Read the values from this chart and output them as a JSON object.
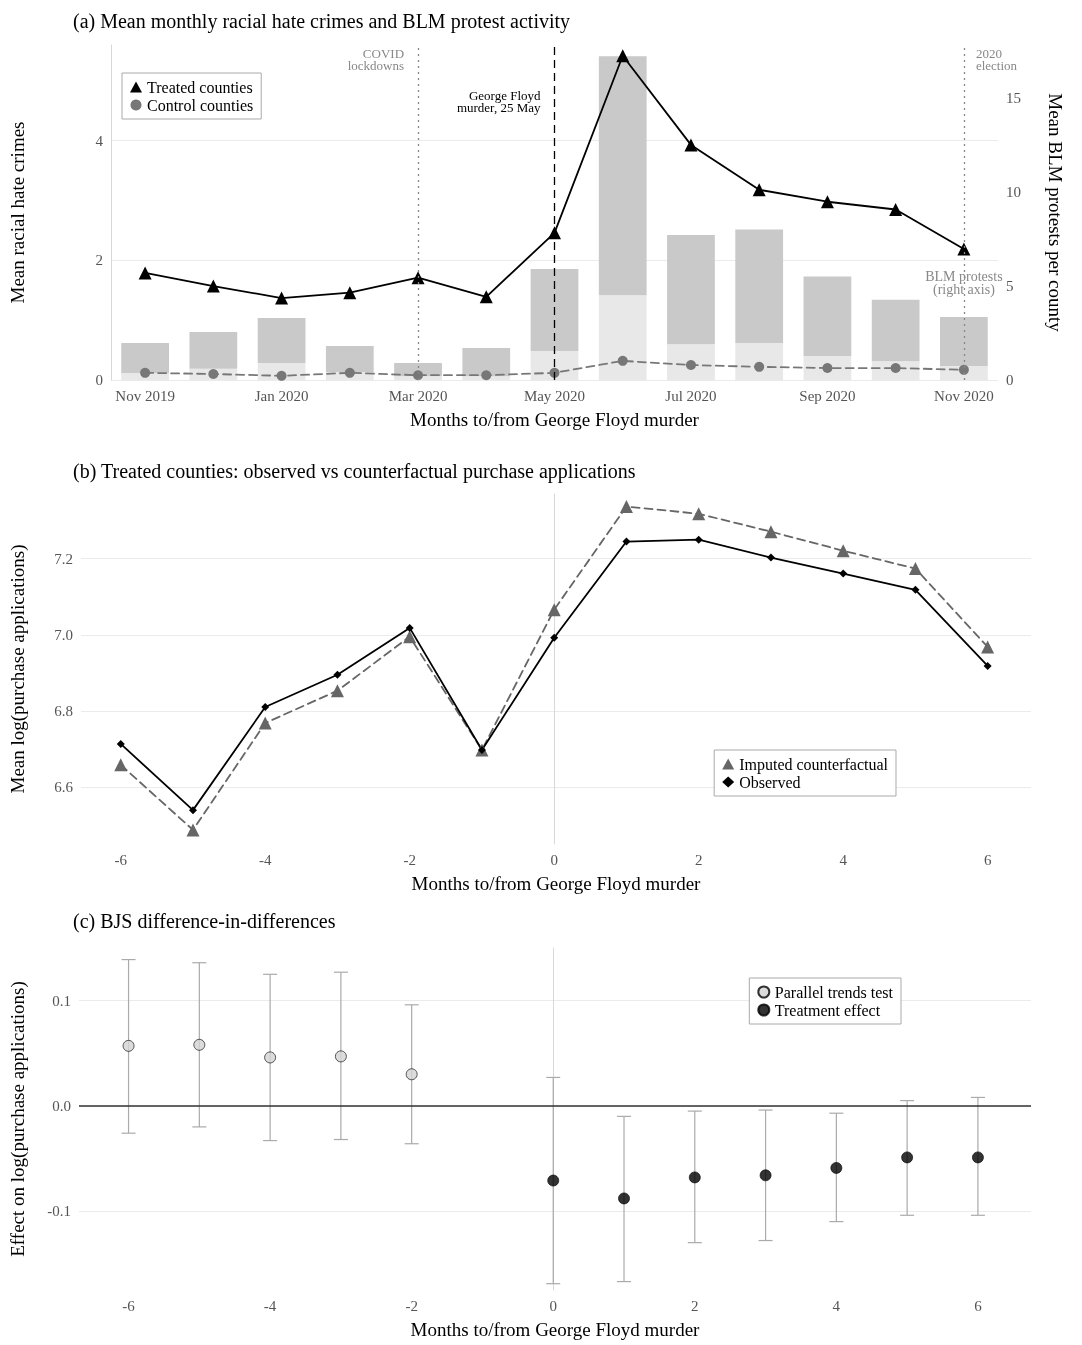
{
  "chart_data": [
    {
      "type": "bar",
      "title": "(a) Mean monthly racial hate crimes and BLM protest activity",
      "xlabel": "Months to/from George Floyd murder",
      "ylabel": "Mean racial hate crimes",
      "y2label": "Mean BLM protests per county",
      "categories": [
        "Nov 2019",
        null,
        "Jan 2020",
        null,
        "Mar 2020",
        null,
        "May 2020",
        null,
        "Jul 2020",
        null,
        "Sep 2020",
        null,
        "Nov 2020"
      ],
      "series": [
        {
          "axis": "y2",
          "color": "#e8e8e8",
          "values": [
            0.37,
            0.6,
            0.9,
            0.43,
            0.2,
            0.2,
            1.54,
            4.5,
            1.9,
            1.97,
            1.28,
            1.0,
            0.74
          ]
        },
        {
          "axis": "y2",
          "color": "#c9c9c9",
          "values": [
            1.6,
            1.95,
            2.4,
            1.38,
            0.7,
            1.5,
            4.36,
            12.7,
            5.8,
            6.03,
            4.22,
            3.26,
            2.61
          ]
        },
        {
          "type": "line",
          "name": "Treated counties",
          "color": "#000000",
          "marker": "triangle",
          "line_style": "solid",
          "values": [
            1.79,
            1.57,
            1.37,
            1.46,
            1.71,
            1.39,
            2.46,
            5.42,
            3.93,
            3.18,
            2.98,
            2.85,
            2.19
          ]
        },
        {
          "type": "line",
          "name": "Control counties",
          "color": "#777777",
          "marker": "circle",
          "line_style": "dashed",
          "values": [
            0.12,
            0.1,
            0.07,
            0.12,
            0.08,
            0.08,
            0.12,
            0.32,
            0.25,
            0.22,
            0.2,
            0.2,
            0.17
          ]
        }
      ],
      "stacked": true,
      "ylim": [
        0,
        5.6
      ],
      "yticks": [
        0,
        2,
        4
      ],
      "y2lim": [
        0,
        17.8
      ],
      "y2ticks": [
        0,
        5,
        10,
        15
      ],
      "grid": "y",
      "legend": "top left",
      "ref_lines": [
        {
          "axis": "x",
          "value": "Mar 2020",
          "label": "COVID lockdowns",
          "color": "#888888",
          "line_style": "dotted"
        },
        {
          "axis": "x",
          "value": "May 2020",
          "label": "George Floyd murder, 25 May",
          "color": "#000000",
          "line_style": "dashed"
        },
        {
          "axis": "x",
          "value": "Nov 2020",
          "label": "2020 election",
          "color": "#888888",
          "line_style": "dotted"
        }
      ],
      "annotations": [
        {
          "text": "BLM protests (right axis)",
          "x": "Nov 2020",
          "y": 1.4
        }
      ]
    },
    {
      "type": "line",
      "title": "(b) Treated counties: observed vs counterfactual purchase applications",
      "xlabel": "Months to/from George Floyd murder",
      "ylabel": "Mean log(purchase applications)",
      "x": [
        -6,
        -5,
        -4,
        -3,
        -2,
        -1,
        0,
        1,
        2,
        3,
        4,
        5,
        6
      ],
      "series": [
        {
          "name": "Imputed counterfactual",
          "color": "#666666",
          "marker": "triangle",
          "line_style": "dashed",
          "values": [
            6.658,
            6.487,
            6.768,
            6.853,
            6.995,
            6.697,
            7.066,
            7.337,
            7.318,
            7.271,
            7.221,
            7.174,
            6.968
          ]
        },
        {
          "name": "Observed",
          "color": "#000000",
          "marker": "diamond",
          "line_style": "solid",
          "values": [
            6.713,
            6.539,
            6.81,
            6.895,
            7.018,
            6.697,
            6.992,
            7.245,
            7.25,
            7.203,
            7.161,
            7.118,
            6.918
          ]
        }
      ],
      "xlim": [
        -6.55,
        6.6
      ],
      "xticks": [
        -6,
        -4,
        -2,
        0,
        2,
        4,
        6
      ],
      "ylim": [
        6.45,
        7.37
      ],
      "yticks": [
        6.6,
        6.8,
        {
          "value": 7,
          "label": "7.0"
        },
        7.2
      ],
      "grid": "y",
      "legend": "bottom right"
    },
    {
      "type": "scatter",
      "title": "(c) BJS difference-in-differences",
      "xlabel": "Months to/from George Floyd murder",
      "ylabel": "Effect on log(purchase applications)",
      "series": [
        {
          "name": "Parallel trends test",
          "color": "#d3d3d3",
          "marker": "circle",
          "x": [
            -6,
            -5,
            -4,
            -3,
            -2
          ],
          "values": [
            0.057,
            0.058,
            0.046,
            0.047,
            0.03
          ],
          "errors": [
            [
              -0.026,
              0.139
            ],
            [
              -0.02,
              0.136
            ],
            [
              -0.033,
              0.125
            ],
            [
              -0.032,
              0.127
            ],
            [
              -0.036,
              0.096
            ]
          ]
        },
        {
          "name": "Treatment effect",
          "color": "#000000",
          "marker": "circle",
          "x": [
            0,
            1,
            2,
            3,
            4,
            5,
            6
          ],
          "values": [
            -0.071,
            -0.088,
            -0.068,
            -0.066,
            -0.059,
            -0.049,
            -0.049
          ],
          "errors": [
            [
              -0.169,
              0.027
            ],
            [
              -0.167,
              -0.01
            ],
            [
              -0.13,
              -0.005
            ],
            [
              -0.128,
              -0.004
            ],
            [
              -0.11,
              -0.007
            ],
            [
              -0.104,
              0.005
            ],
            [
              -0.104,
              0.008
            ]
          ]
        }
      ],
      "xlim": [
        -6.7,
        6.75
      ],
      "xticks": [
        -6,
        -4,
        -2,
        0,
        2,
        4,
        6
      ],
      "ylim": [
        -0.175,
        0.15
      ],
      "yticks": [
        -0.1,
        {
          "value": 0,
          "label": "0.0"
        },
        0.1
      ],
      "grid": "y",
      "legend": "top right",
      "ref_lines": [
        {
          "axis": "y",
          "value": 0,
          "color": "#333333",
          "line_style": "solid"
        }
      ]
    }
  ]
}
